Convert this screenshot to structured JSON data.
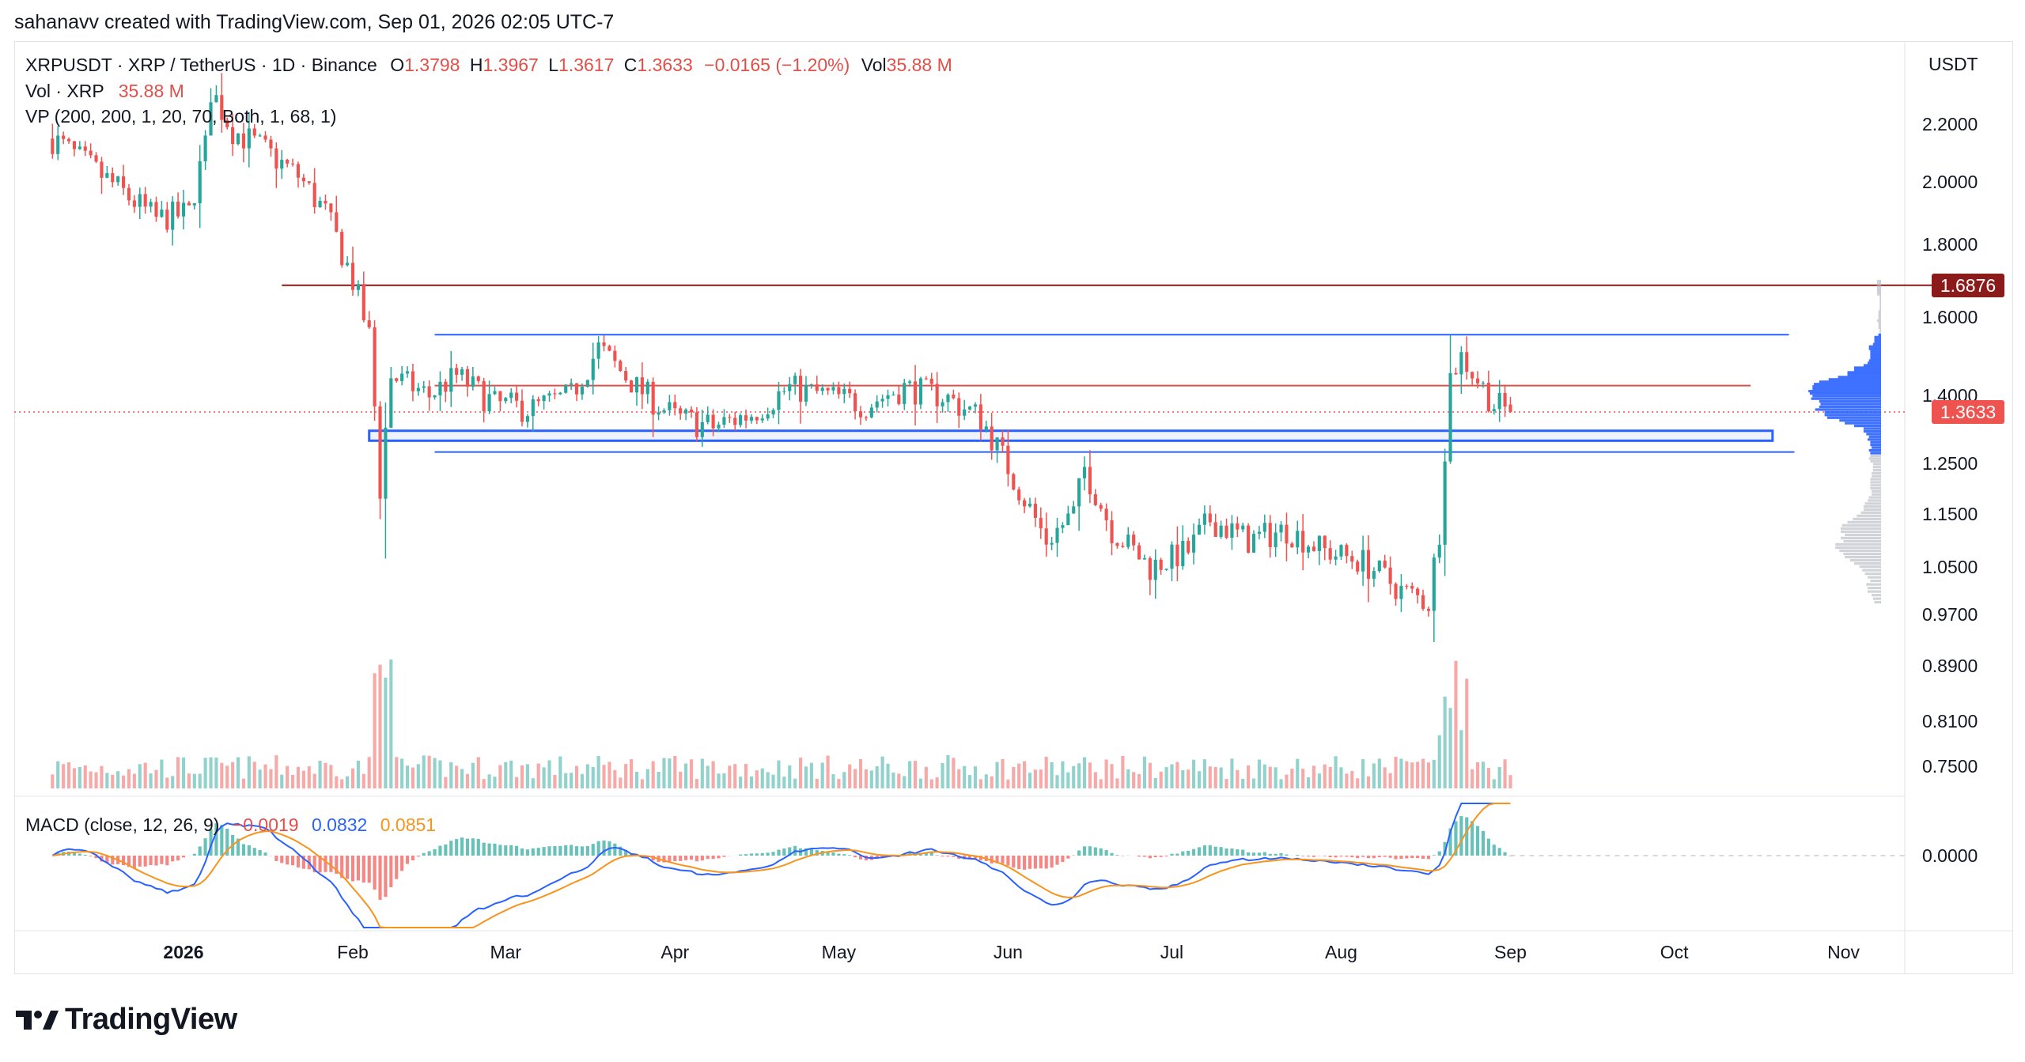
{
  "header": {
    "credit": "sahanavv created with TradingView.com, Sep 01, 2026 02:05 UTC-7"
  },
  "legend": {
    "symbol": "XRPUSDT · XRP / TetherUS · 1D · Binance",
    "o_label": "O",
    "o": "1.3798",
    "h_label": "H",
    "h": "1.3967",
    "l_label": "L",
    "l": "1.3617",
    "c_label": "C",
    "c": "1.3633",
    "change": "−0.0165 (−1.20%)",
    "vol_label": "Vol",
    "vol": "35.88 M",
    "vol_row_label": "Vol · XRP",
    "vol_row_value": "35.88 M",
    "vp_row": "VP (200, 200, 1, 20, 70, Both, 1, 68, 1)",
    "macd_label": "MACD (close, 12, 26, 9)",
    "macd_hist": "−0.0019",
    "macd_line": "0.0832",
    "macd_signal": "0.0851"
  },
  "price_axis": {
    "currency": "USDT"
  },
  "badges": {
    "resistance": "1.6876",
    "last": "1.3633"
  },
  "footer": {
    "brand": "TradingView"
  },
  "colors": {
    "up": "#26a69a",
    "down": "#ef5350",
    "resistance": "#8b1a1a",
    "box": "#2962ff",
    "macd": "#2962ff",
    "signal": "#f7941d",
    "vp_up": "#2962ff",
    "vp_down": "#b2b5be"
  },
  "chart_data": {
    "type": "candlestick",
    "title": "XRPUSDT · XRP / TetherUS · 1D · Binance",
    "y_ticks": [
      2.2,
      2.0,
      1.8,
      1.6,
      1.4,
      1.25,
      1.15,
      1.05,
      0.97,
      0.89,
      0.81,
      0.75
    ],
    "y_tick_labels": [
      "2.2000",
      "2.0000",
      "1.8000",
      "1.6000",
      "1.4000",
      "1.2500",
      "1.1500",
      "1.0500",
      "0.9700",
      "0.8900",
      "0.8100",
      "0.7500"
    ],
    "x_ticks": [
      {
        "date": "2026-01-01",
        "label": "2026"
      },
      {
        "date": "2026-02-01",
        "label": "Feb"
      },
      {
        "date": "2026-03-01",
        "label": "Mar"
      },
      {
        "date": "2026-04-01",
        "label": "Apr"
      },
      {
        "date": "2026-05-01",
        "label": "May"
      },
      {
        "date": "2026-06-01",
        "label": "Jun"
      },
      {
        "date": "2026-07-01",
        "label": "Jul"
      },
      {
        "date": "2026-08-01",
        "label": "Aug"
      },
      {
        "date": "2026-09-01",
        "label": "Sep"
      },
      {
        "date": "2026-10-01",
        "label": "Oct"
      },
      {
        "date": "2026-11-01",
        "label": "Nov"
      }
    ],
    "close_path": [
      [
        "2025-12-08",
        2.15
      ],
      [
        "2025-12-15",
        2.05
      ],
      [
        "2025-12-22",
        1.95
      ],
      [
        "2025-12-27",
        1.88
      ],
      [
        "2026-01-02",
        1.9
      ],
      [
        "2026-01-05",
        2.12
      ],
      [
        "2026-01-06",
        2.32
      ],
      [
        "2026-01-10",
        2.18
      ],
      [
        "2026-01-15",
        2.12
      ],
      [
        "2026-01-22",
        2.02
      ],
      [
        "2026-01-27",
        1.9
      ],
      [
        "2026-02-01",
        1.7
      ],
      [
        "2026-02-04",
        1.55
      ],
      [
        "2026-02-06",
        1.2
      ],
      [
        "2026-02-08",
        1.45
      ],
      [
        "2026-02-15",
        1.4
      ],
      [
        "2026-02-20",
        1.45
      ],
      [
        "2026-02-27",
        1.38
      ],
      [
        "2026-03-06",
        1.37
      ],
      [
        "2026-03-13",
        1.4
      ],
      [
        "2026-03-18",
        1.52
      ],
      [
        "2026-03-25",
        1.42
      ],
      [
        "2026-04-01",
        1.35
      ],
      [
        "2026-04-08",
        1.33
      ],
      [
        "2026-04-15",
        1.36
      ],
      [
        "2026-04-22",
        1.42
      ],
      [
        "2026-04-29",
        1.4
      ],
      [
        "2026-05-06",
        1.38
      ],
      [
        "2026-05-13",
        1.42
      ],
      [
        "2026-05-20",
        1.4
      ],
      [
        "2026-05-27",
        1.35
      ],
      [
        "2026-06-03",
        1.2
      ],
      [
        "2026-06-08",
        1.1
      ],
      [
        "2026-06-13",
        1.15
      ],
      [
        "2026-06-15",
        1.24
      ],
      [
        "2026-06-20",
        1.12
      ],
      [
        "2026-06-27",
        1.05
      ],
      [
        "2026-07-04",
        1.08
      ],
      [
        "2026-07-08",
        1.14
      ],
      [
        "2026-07-15",
        1.1
      ],
      [
        "2026-07-22",
        1.12
      ],
      [
        "2026-07-29",
        1.08
      ],
      [
        "2026-08-05",
        1.06
      ],
      [
        "2026-08-12",
        1.01
      ],
      [
        "2026-08-17",
        0.99
      ],
      [
        "2026-08-19",
        1.12
      ],
      [
        "2026-08-21",
        1.45
      ],
      [
        "2026-08-23",
        1.5
      ],
      [
        "2026-08-26",
        1.44
      ],
      [
        "2026-08-29",
        1.38
      ],
      [
        "2026-09-01",
        1.3633
      ]
    ],
    "last_candle": {
      "date": "2026-09-01",
      "open": 1.3798,
      "high": 1.3967,
      "low": 1.3617,
      "close": 1.3633
    },
    "volume_last": "35.88 M",
    "levels": [
      {
        "value": 1.6876,
        "color": "#8b1a1a",
        "from": "2026-01-19",
        "to": "2026-11-30"
      },
      {
        "value": 1.555,
        "color": "#2962ff",
        "from": "2026-02-16",
        "to": "2026-10-22"
      },
      {
        "value": 1.425,
        "color": "#e0504a",
        "from": "2026-02-16",
        "to": "2026-10-15"
      },
      {
        "value": 1.275,
        "color": "#2962ff",
        "from": "2026-02-16",
        "to": "2026-10-23"
      }
    ],
    "zone": {
      "from": "2026-02-04",
      "to": "2026-10-19",
      "low": 1.3,
      "high": 1.322
    },
    "last_price_line": 1.3633,
    "macd": {
      "macd": 0.0832,
      "signal": 0.0851,
      "histogram": -0.0019,
      "zero_label": "0.0000"
    }
  }
}
